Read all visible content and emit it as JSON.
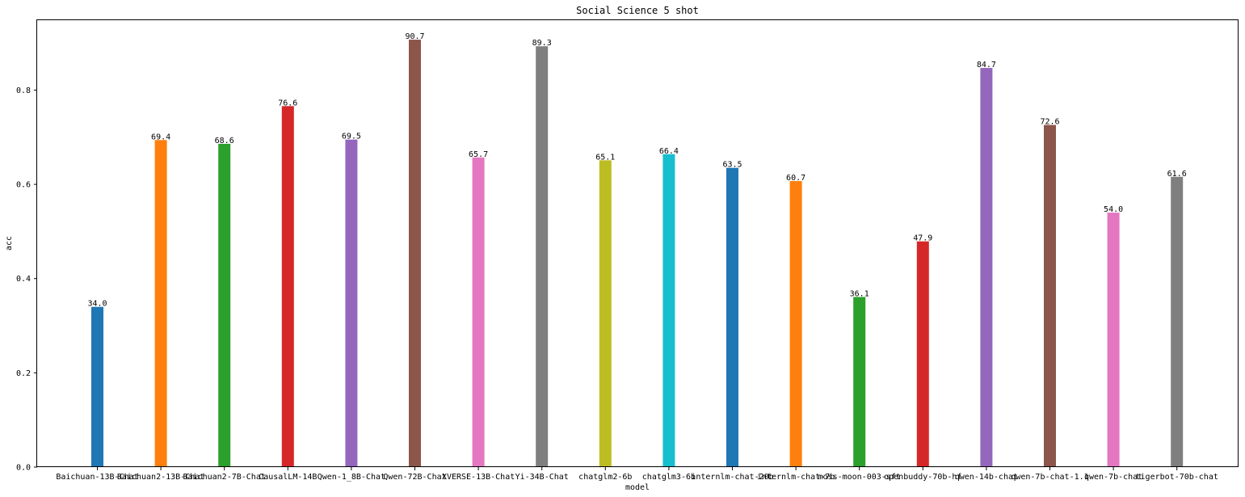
{
  "chart_data": {
    "type": "bar",
    "title": "Social Science 5 shot",
    "xlabel": "model",
    "ylabel": "acc",
    "ylim": [
      0,
      0.95
    ],
    "yticks": [
      "0.0",
      "0.2",
      "0.4",
      "0.6",
      "0.8"
    ],
    "grid": false,
    "categories": [
      "Baichuan-13B-Chat",
      "Baichuan2-13B-Chat",
      "Baichuan2-7B-Chat",
      "CausalLM-14B",
      "Qwen-1_8B-Chat",
      "Qwen-72B-Chat",
      "XVERSE-13B-Chat",
      "Yi-34B-Chat",
      "chatglm2-6b",
      "chatglm3-6b",
      "internlm-chat-20b",
      "internlm-chat-7b",
      "moss-moon-003-sft",
      "openbuddy-70b-hf",
      "qwen-14b-chat",
      "qwen-7b-chat-1.1",
      "qwen-7b-chat",
      "tigerbot-70b-chat"
    ],
    "values": [
      0.34,
      0.694,
      0.686,
      0.766,
      0.695,
      0.907,
      0.657,
      0.893,
      0.651,
      0.664,
      0.635,
      0.607,
      0.361,
      0.479,
      0.847,
      0.726,
      0.54,
      0.616
    ],
    "value_labels": [
      "34.0",
      "69.4",
      "68.6",
      "76.6",
      "69.5",
      "90.7",
      "65.7",
      "89.3",
      "65.1",
      "66.4",
      "63.5",
      "60.7",
      "36.1",
      "47.9",
      "84.7",
      "72.6",
      "54.0",
      "61.6"
    ],
    "colors": [
      "#1f77b4",
      "#ff7f0e",
      "#2ca02c",
      "#d62728",
      "#9467bd",
      "#8c564b",
      "#e377c2",
      "#7f7f7f",
      "#bcbd22",
      "#17becf",
      "#1f77b4",
      "#ff7f0e",
      "#2ca02c",
      "#d62728",
      "#9467bd",
      "#8c564b",
      "#e377c2",
      "#7f7f7f"
    ]
  }
}
